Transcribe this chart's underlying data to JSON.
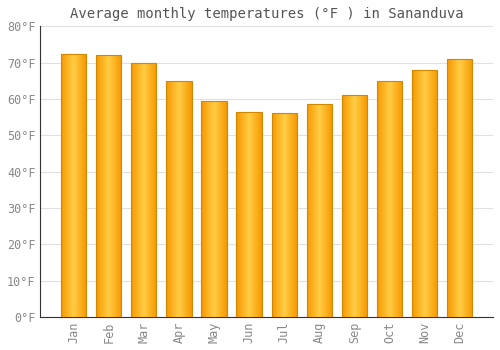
{
  "title": "Average monthly temperatures (°F ) in Sananduva",
  "months": [
    "Jan",
    "Feb",
    "Mar",
    "Apr",
    "May",
    "Jun",
    "Jul",
    "Aug",
    "Sep",
    "Oct",
    "Nov",
    "Dec"
  ],
  "values": [
    72.5,
    72.0,
    70.0,
    65.0,
    59.5,
    56.5,
    56.0,
    58.5,
    61.0,
    65.0,
    68.0,
    71.0
  ],
  "ylim": [
    0,
    80
  ],
  "yticks": [
    0,
    10,
    20,
    30,
    40,
    50,
    60,
    70,
    80
  ],
  "ytick_labels": [
    "0°F",
    "10°F",
    "20°F",
    "30°F",
    "40°F",
    "50°F",
    "60°F",
    "70°F",
    "80°F"
  ],
  "bar_color_center": "#FFCC44",
  "bar_color_edge": "#F59800",
  "bar_outline_color": "#D08800",
  "background_color": "#FFFFFF",
  "grid_color": "#E0E0E0",
  "title_fontsize": 10,
  "tick_fontsize": 8.5,
  "tick_color": "#888888",
  "title_color": "#555555",
  "spine_color": "#333333"
}
